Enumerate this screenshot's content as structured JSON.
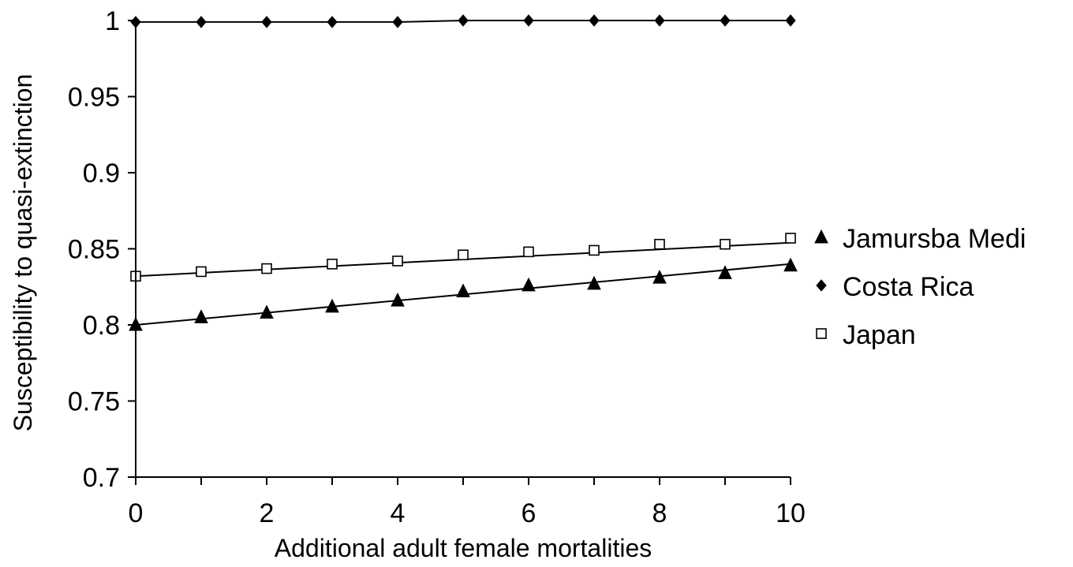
{
  "chart_data": {
    "type": "line",
    "title": "",
    "xlabel": "Additional adult female mortalities",
    "ylabel": "Susceptibility to quasi-extinction",
    "xlim": [
      0,
      10
    ],
    "ylim": [
      0.7,
      1
    ],
    "x_ticks": [
      "0",
      "2",
      "4",
      "6",
      "8",
      "10"
    ],
    "y_ticks": [
      "0.7",
      "0.75",
      "0.8",
      "0.85",
      "0.9",
      "0.95",
      "1"
    ],
    "x": [
      0,
      1,
      2,
      3,
      4,
      5,
      6,
      7,
      8,
      9,
      10
    ],
    "grid": false,
    "legend_position": "right",
    "series": [
      {
        "name": "Jamursba Medi",
        "marker": "triangle-filled",
        "color": "#000000",
        "values": [
          0.8,
          0.805,
          0.808,
          0.812,
          0.816,
          0.822,
          0.826,
          0.827,
          0.831,
          0.834,
          0.839
        ],
        "trendline": [
          0.8,
          0.84
        ]
      },
      {
        "name": "Costa Rica",
        "marker": "diamond-filled",
        "color": "#000000",
        "values": [
          0.999,
          0.999,
          0.999,
          0.999,
          0.999,
          1.0,
          1.0,
          1.0,
          1.0,
          1.0,
          1.0
        ]
      },
      {
        "name": "Japan",
        "marker": "square-open",
        "color": "#000000",
        "values": [
          0.832,
          0.835,
          0.837,
          0.84,
          0.842,
          0.846,
          0.848,
          0.849,
          0.853,
          0.853,
          0.857
        ],
        "trendline": [
          0.832,
          0.854
        ]
      }
    ]
  }
}
